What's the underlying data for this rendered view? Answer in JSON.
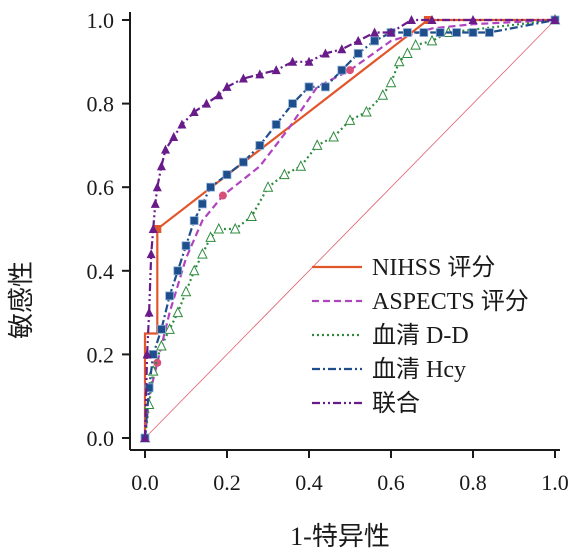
{
  "chart_data": {
    "type": "line",
    "xlabel": "1-特异性",
    "ylabel": "敏感性",
    "xlim": [
      0,
      1
    ],
    "ylim": [
      0,
      1
    ],
    "x_ticks": [
      "0.0",
      "0.2",
      "0.4",
      "0.6",
      "0.8",
      "1.0"
    ],
    "y_ticks": [
      "0.0",
      "0.2",
      "0.4",
      "0.6",
      "0.8",
      "1.0"
    ],
    "legend_position": "lower-right",
    "grid": false,
    "reference_line": {
      "x": [
        0,
        1
      ],
      "y": [
        0,
        1
      ],
      "color": "#e06070"
    },
    "series": [
      {
        "name": "NIHSS 评分",
        "color": "#e2562c",
        "dash": "solid",
        "marker": "square",
        "x": [
          0.0,
          0.0,
          0.03,
          0.03,
          0.69,
          0.69,
          1.0
        ],
        "y": [
          0.0,
          0.25,
          0.25,
          0.5,
          1.0,
          1.0,
          1.0
        ]
      },
      {
        "name": "ASPECTS 评分",
        "color": "#b044c0",
        "dash": "dashed",
        "marker": "circle",
        "x": [
          0.0,
          0.01,
          0.03,
          0.06,
          0.1,
          0.14,
          0.19,
          0.28,
          0.35,
          0.42,
          0.5,
          0.6,
          0.7,
          0.8,
          1.0
        ],
        "y": [
          0.0,
          0.1,
          0.18,
          0.3,
          0.43,
          0.52,
          0.58,
          0.65,
          0.74,
          0.84,
          0.88,
          0.95,
          0.98,
          0.99,
          1.0
        ]
      },
      {
        "name": "血清 D-D",
        "color": "#2e8b3e",
        "dash": "dotted",
        "marker": "triangle-open",
        "x": [
          0.0,
          0.01,
          0.02,
          0.04,
          0.06,
          0.08,
          0.1,
          0.12,
          0.14,
          0.16,
          0.18,
          0.22,
          0.26,
          0.3,
          0.34,
          0.38,
          0.42,
          0.46,
          0.5,
          0.54,
          0.58,
          0.6,
          0.62,
          0.64,
          0.66,
          0.7,
          0.74,
          1.0
        ],
        "y": [
          0.0,
          0.08,
          0.16,
          0.22,
          0.26,
          0.3,
          0.35,
          0.4,
          0.44,
          0.48,
          0.5,
          0.5,
          0.53,
          0.6,
          0.63,
          0.65,
          0.7,
          0.72,
          0.76,
          0.78,
          0.82,
          0.85,
          0.9,
          0.92,
          0.94,
          0.95,
          0.97,
          1.0
        ]
      },
      {
        "name": "血清 Hcy",
        "color": "#1f4e8c",
        "dash": "dashdot",
        "marker": "square-dark",
        "x": [
          0.0,
          0.01,
          0.02,
          0.04,
          0.06,
          0.08,
          0.1,
          0.12,
          0.14,
          0.16,
          0.2,
          0.24,
          0.28,
          0.32,
          0.36,
          0.4,
          0.44,
          0.48,
          0.52,
          0.56,
          0.6,
          0.64,
          0.68,
          0.72,
          0.76,
          0.8,
          0.84,
          1.0
        ],
        "y": [
          0.0,
          0.12,
          0.2,
          0.26,
          0.34,
          0.4,
          0.46,
          0.52,
          0.56,
          0.6,
          0.63,
          0.66,
          0.7,
          0.75,
          0.8,
          0.84,
          0.84,
          0.88,
          0.92,
          0.95,
          0.97,
          0.97,
          0.97,
          0.97,
          0.97,
          0.97,
          0.97,
          1.0
        ]
      },
      {
        "name": "联合",
        "color": "#6a1b8a",
        "dash": "dashdotdot",
        "marker": "triangle-filled",
        "x": [
          0.0,
          0.005,
          0.01,
          0.015,
          0.02,
          0.025,
          0.03,
          0.04,
          0.05,
          0.07,
          0.09,
          0.12,
          0.15,
          0.18,
          0.2,
          0.24,
          0.28,
          0.32,
          0.36,
          0.4,
          0.44,
          0.48,
          0.52,
          0.56,
          0.6,
          0.65,
          0.7,
          0.8,
          1.0
        ],
        "y": [
          0.0,
          0.2,
          0.3,
          0.44,
          0.5,
          0.56,
          0.6,
          0.65,
          0.69,
          0.72,
          0.75,
          0.78,
          0.8,
          0.82,
          0.84,
          0.86,
          0.87,
          0.88,
          0.9,
          0.9,
          0.92,
          0.93,
          0.95,
          0.97,
          0.97,
          1.0,
          1.0,
          1.0,
          1.0
        ]
      }
    ]
  }
}
